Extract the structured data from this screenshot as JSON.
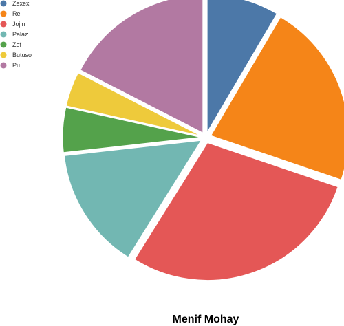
{
  "chart_data": {
    "type": "pie",
    "title": "Menif Mohay",
    "slices": [
      {
        "label": "Zexexi",
        "value": 7.9,
        "color": "#4c78a8"
      },
      {
        "label": "Re",
        "value": 20.3,
        "color": "#f58518"
      },
      {
        "label": "Jojin",
        "value": 26.8,
        "color": "#e45756"
      },
      {
        "label": "Palaz",
        "value": 13.4,
        "color": "#72b7b2"
      },
      {
        "label": "Zef",
        "value": 4.9,
        "color": "#54a24b"
      },
      {
        "label": "Butuso",
        "value": 3.8,
        "color": "#eeca3b"
      },
      {
        "label": "Pu",
        "value": 16.3,
        "color": "#b279a2"
      }
    ],
    "legend_position": "top-left"
  }
}
